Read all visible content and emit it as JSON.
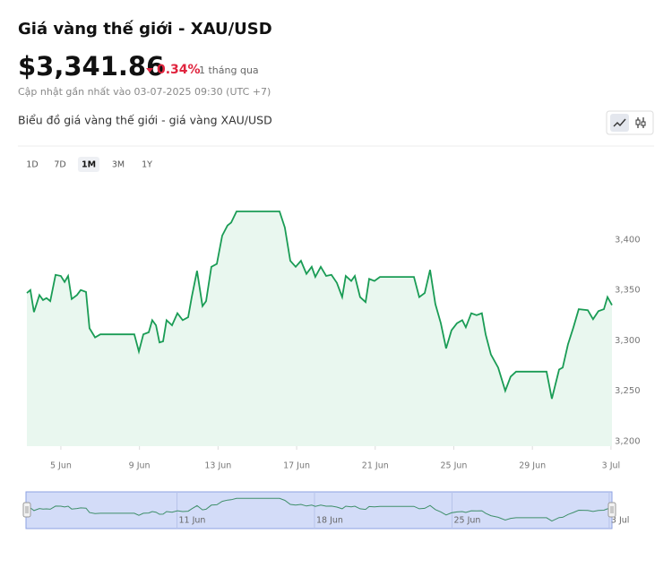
{
  "header": {
    "title": "Giá vàng thế giới - XAU/USD",
    "price": "$3,341.86",
    "change": "0.34%",
    "period": "1 tháng qua",
    "updated": "Cập nhật gần nhất vào 03-07-2025 09:30 (UTC +7)"
  },
  "chart_heading": "Biểu đồ giá vàng thế giới - giá vàng XAU/USD",
  "ranges": [
    "1D",
    "7D",
    "1M",
    "3M",
    "1Y"
  ],
  "selected_range": 2,
  "chart_data": {
    "type": "line",
    "color": "#1a9c55",
    "fill": "#e9f7ef",
    "x": [
      3.27,
      3.45,
      3.63,
      3.91,
      4.09,
      4.27,
      4.46,
      4.73,
      5.0,
      5.19,
      5.37,
      5.55,
      5.82,
      6.01,
      6.28,
      6.46,
      6.74,
      7.01,
      8.74,
      8.97,
      9.2,
      9.47,
      9.65,
      9.84,
      10.02,
      10.2,
      10.38,
      10.66,
      10.93,
      11.2,
      11.48,
      11.66,
      11.93,
      12.21,
      12.39,
      12.66,
      12.94,
      13.21,
      13.48,
      13.67,
      13.94,
      16.13,
      16.4,
      16.68,
      16.95,
      17.22,
      17.5,
      17.77,
      17.95,
      18.23,
      18.5,
      18.77,
      19.05,
      19.32,
      19.5,
      19.78,
      19.96,
      20.23,
      20.51,
      20.69,
      20.96,
      21.24,
      22.97,
      23.24,
      23.52,
      23.79,
      24.06,
      24.34,
      24.61,
      24.88,
      25.16,
      25.43,
      25.61,
      25.89,
      26.16,
      26.43,
      26.62,
      26.89,
      27.26,
      27.62,
      27.89,
      28.17,
      29.72,
      29.99,
      30.36,
      30.54,
      30.81,
      31.09,
      31.36,
      31.82,
      32.09,
      32.36,
      32.64,
      32.82,
      33.05
    ],
    "values": [
      3347,
      3350,
      3328,
      3345,
      3340,
      3342,
      3339,
      3365,
      3364,
      3358,
      3364,
      3341,
      3345,
      3350,
      3348,
      3312,
      3303,
      3306,
      3306,
      3289,
      3306,
      3308,
      3320,
      3315,
      3298,
      3299,
      3320,
      3315,
      3327,
      3320,
      3323,
      3343,
      3369,
      3334,
      3339,
      3373,
      3376,
      3404,
      3414,
      3417,
      3428,
      3428,
      3412,
      3379,
      3373,
      3379,
      3366,
      3373,
      3363,
      3373,
      3364,
      3365,
      3357,
      3343,
      3364,
      3359,
      3364,
      3343,
      3338,
      3361,
      3359,
      3363,
      3363,
      3343,
      3347,
      3370,
      3336,
      3317,
      3292,
      3310,
      3317,
      3320,
      3313,
      3327,
      3325,
      3327,
      3306,
      3286,
      3273,
      3250,
      3264,
      3269,
      3269,
      3242,
      3271,
      3273,
      3296,
      3313,
      3331,
      3330,
      3321,
      3329,
      3331,
      3343,
      3335
    ],
    "xlim": [
      3.27,
      33.05
    ],
    "ylim": [
      3195,
      3460
    ],
    "xticks": [
      {
        "value": 5,
        "label": "5 Jun"
      },
      {
        "value": 9,
        "label": "9 Jun"
      },
      {
        "value": 13,
        "label": "13 Jun"
      },
      {
        "value": 17,
        "label": "17 Jun"
      },
      {
        "value": 21,
        "label": "21 Jun"
      },
      {
        "value": 25,
        "label": "25 Jun"
      },
      {
        "value": 29,
        "label": "29 Jun"
      },
      {
        "value": 33,
        "label": "3 Jul"
      }
    ],
    "yticks": [
      {
        "value": 3200,
        "label": "3,200"
      },
      {
        "value": 3250,
        "label": "3,250"
      },
      {
        "value": 3300,
        "label": "3,300"
      },
      {
        "value": 3350,
        "label": "3,350"
      },
      {
        "value": 3400,
        "label": "3,400"
      }
    ],
    "navigator_xticks": [
      {
        "value": 11,
        "label": "11 Jun"
      },
      {
        "value": 18,
        "label": "18 Jun"
      },
      {
        "value": 25,
        "label": "25 Jun"
      },
      {
        "value": 33,
        "label": "3 Jul"
      }
    ]
  }
}
